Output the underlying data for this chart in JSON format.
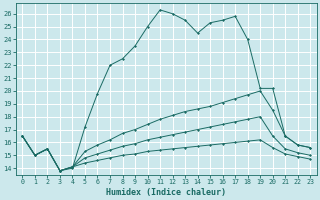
{
  "xlabel": "Humidex (Indice chaleur)",
  "bg_color": "#cce8ec",
  "grid_color": "#ffffff",
  "line_color": "#1a6b64",
  "xlim": [
    -0.5,
    23.5
  ],
  "ylim": [
    13.5,
    26.8
  ],
  "xticks": [
    0,
    1,
    2,
    3,
    4,
    5,
    6,
    7,
    8,
    9,
    10,
    11,
    12,
    13,
    14,
    15,
    16,
    17,
    18,
    19,
    20,
    21,
    22,
    23
  ],
  "yticks": [
    14,
    15,
    16,
    17,
    18,
    19,
    20,
    21,
    22,
    23,
    24,
    25,
    26
  ],
  "line1_x": [
    0,
    1,
    2,
    3,
    4,
    5,
    6,
    7,
    8,
    9,
    10,
    11,
    12,
    13,
    14,
    15,
    16,
    17,
    18,
    19,
    20,
    21,
    22,
    23
  ],
  "line1_y": [
    16.5,
    15.0,
    15.5,
    13.8,
    14.0,
    17.2,
    19.8,
    22.0,
    22.5,
    23.5,
    25.0,
    26.3,
    26.0,
    25.5,
    24.5,
    25.3,
    25.5,
    25.8,
    24.0,
    20.2,
    20.2,
    16.5,
    15.8,
    15.6
  ],
  "line2_x": [
    0,
    1,
    2,
    3,
    4,
    5,
    6,
    7,
    8,
    9,
    10,
    11,
    12,
    13,
    14,
    15,
    16,
    17,
    18,
    19,
    20,
    21,
    22,
    23
  ],
  "line2_y": [
    16.5,
    15.0,
    15.5,
    13.8,
    14.1,
    15.3,
    15.8,
    16.2,
    16.7,
    17.0,
    17.4,
    17.8,
    18.1,
    18.4,
    18.6,
    18.8,
    19.1,
    19.4,
    19.7,
    20.0,
    18.5,
    16.5,
    15.8,
    15.6
  ],
  "line3_x": [
    0,
    1,
    2,
    3,
    4,
    5,
    6,
    7,
    8,
    9,
    10,
    11,
    12,
    13,
    14,
    15,
    16,
    17,
    18,
    19,
    20,
    21,
    22,
    23
  ],
  "line3_y": [
    16.5,
    15.0,
    15.5,
    13.8,
    14.1,
    14.8,
    15.1,
    15.4,
    15.7,
    15.9,
    16.2,
    16.4,
    16.6,
    16.8,
    17.0,
    17.2,
    17.4,
    17.6,
    17.8,
    18.0,
    16.5,
    15.5,
    15.2,
    15.0
  ],
  "line4_x": [
    0,
    1,
    2,
    3,
    4,
    5,
    6,
    7,
    8,
    9,
    10,
    11,
    12,
    13,
    14,
    15,
    16,
    17,
    18,
    19,
    20,
    21,
    22,
    23
  ],
  "line4_y": [
    16.5,
    15.0,
    15.5,
    13.8,
    14.1,
    14.4,
    14.6,
    14.8,
    15.0,
    15.1,
    15.3,
    15.4,
    15.5,
    15.6,
    15.7,
    15.8,
    15.9,
    16.0,
    16.1,
    16.2,
    15.6,
    15.1,
    14.9,
    14.7
  ]
}
